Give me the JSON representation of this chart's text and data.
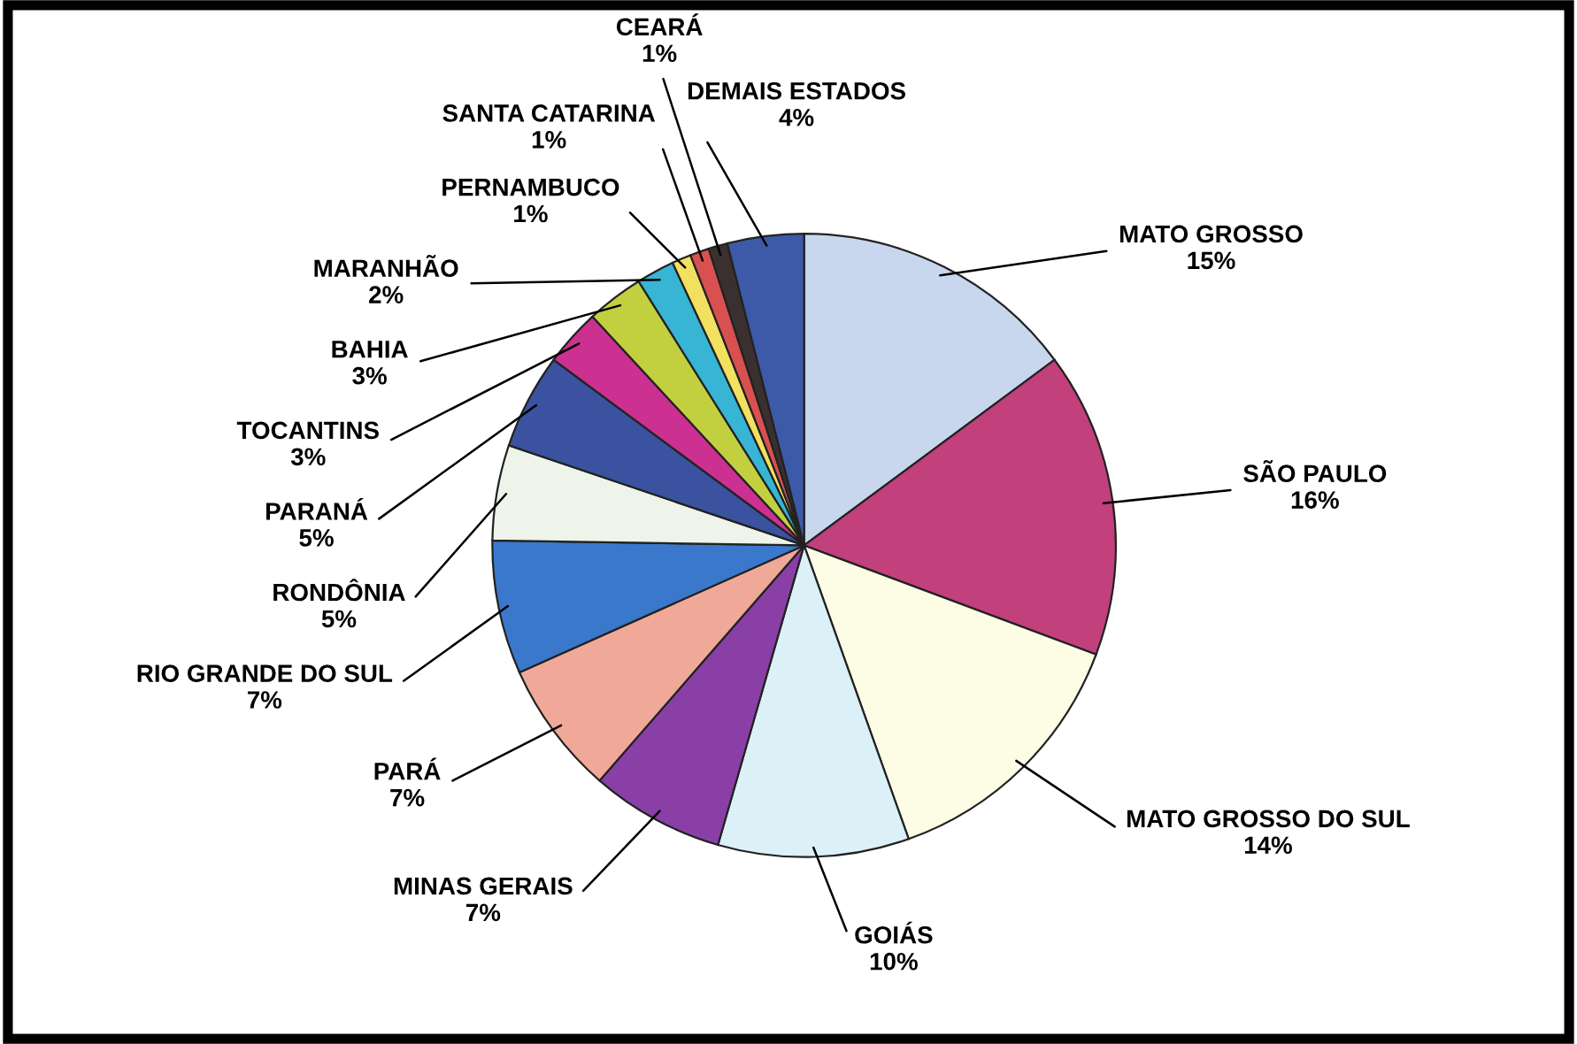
{
  "chart_data": {
    "type": "pie",
    "categories": [
      "MATO GROSSO",
      "SÃO PAULO",
      "MATO GROSSO DO SUL",
      "GOIÁS",
      "MINAS GERAIS",
      "PARÁ",
      "RIO GRANDE DO SUL",
      "RONDÔNIA",
      "PARANÁ",
      "TOCANTINS",
      "BAHIA",
      "MARANHÃO",
      "PERNAMBUCO",
      "SANTA CATARINA",
      "CEARÁ",
      "DEMAIS ESTADOS"
    ],
    "values": [
      15,
      16,
      14,
      10,
      7,
      7,
      7,
      5,
      5,
      3,
      3,
      2,
      1,
      1,
      1,
      4
    ],
    "colors": [
      "#c8d6ee",
      "#c2407c",
      "#fdfde6",
      "#dcf0f8",
      "#8a3fa6",
      "#f0a898",
      "#3a78cc",
      "#eef4ea",
      "#3a52a0",
      "#cc3090",
      "#c2d040",
      "#38b4d4",
      "#f2e060",
      "#d85050",
      "#3a3030",
      "#3d5aa8"
    ],
    "value_labels": [
      "15%",
      "16%",
      "14%",
      "10%",
      "7%",
      "7%",
      "7%",
      "5%",
      "5%",
      "3%",
      "3%",
      "2%",
      "1%",
      "1%",
      "1%",
      "4%"
    ]
  }
}
